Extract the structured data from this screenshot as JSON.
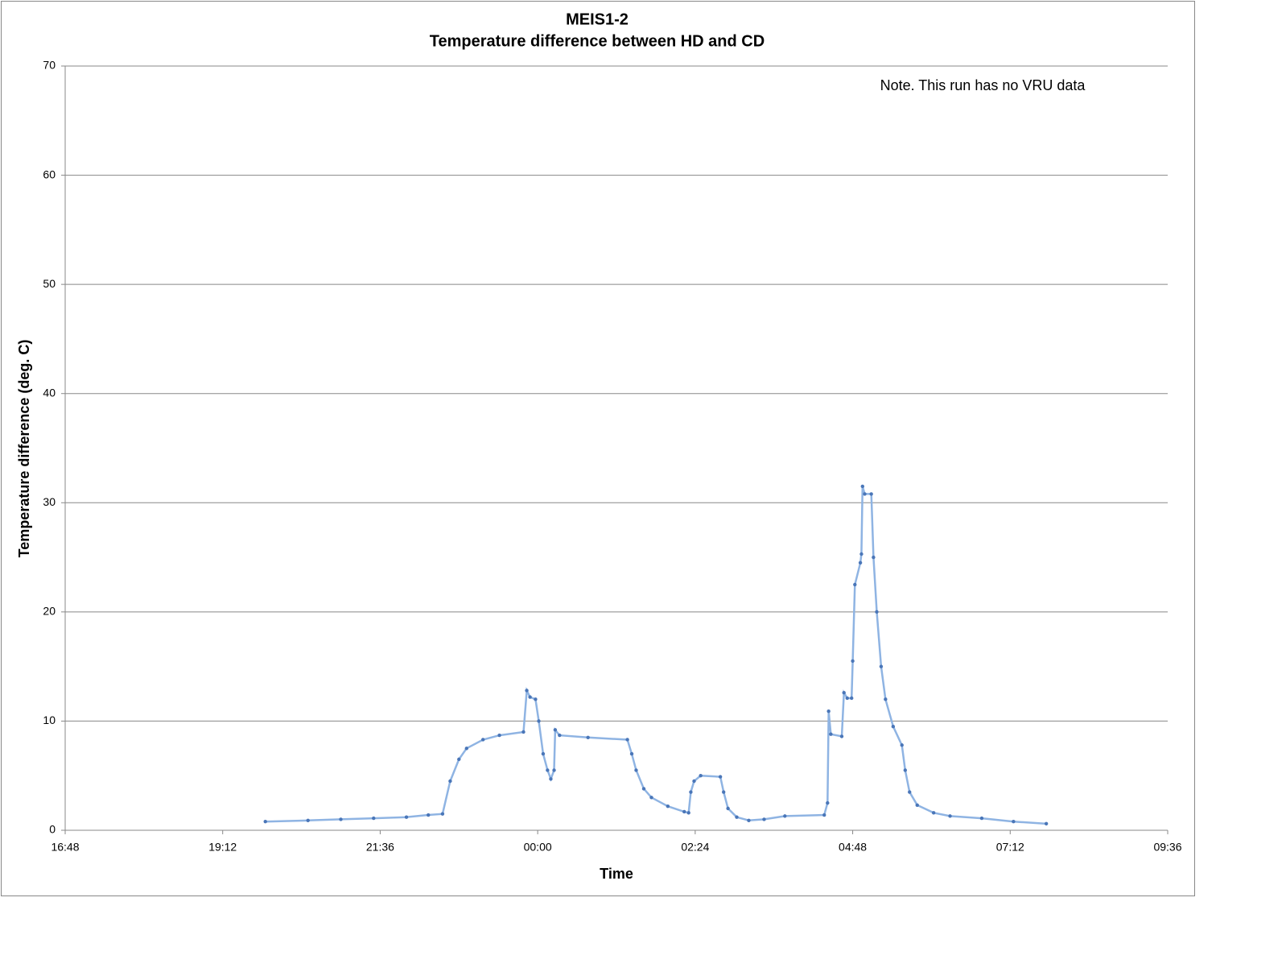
{
  "chart_data": {
    "type": "line",
    "title": "MEIS1-2",
    "subtitle": "Temperature difference between HD and CD",
    "x_label": "Time",
    "y_label": "Temperature difference (deg. C)",
    "annotation": "Note. This run has no VRU data",
    "color": "#4a76b8",
    "grid": true,
    "x": [
      "19:51",
      "20:30",
      "21:00",
      "21:30",
      "22:00",
      "22:20",
      "22:33",
      "22:40",
      "22:48",
      "22:55",
      "23:10",
      "23:25",
      "23:47",
      "23:50",
      "23:53",
      "23:58",
      "00:01",
      "00:05",
      "00:09",
      "00:12",
      "00:15",
      "00:16",
      "00:20",
      "00:46",
      "01:22",
      "01:26",
      "01:30",
      "01:37",
      "01:44",
      "01:59",
      "02:14",
      "02:18",
      "02:20",
      "02:23",
      "02:29",
      "02:47",
      "02:50",
      "02:54",
      "03:02",
      "03:13",
      "03:27",
      "03:46",
      "04:22",
      "04:25",
      "04:26",
      "04:28",
      "04:38",
      "04:40",
      "04:43",
      "04:47",
      "04:48",
      "04:50",
      "04:55",
      "04:56",
      "04:57",
      "04:59",
      "05:05",
      "05:07",
      "05:10",
      "05:14",
      "05:18",
      "05:25",
      "05:33",
      "05:36",
      "05:40",
      "05:47",
      "06:02",
      "06:17",
      "06:46",
      "07:15",
      "07:45"
    ],
    "values": [
      0.8,
      0.9,
      1.0,
      1.1,
      1.2,
      1.4,
      1.5,
      4.5,
      6.5,
      7.5,
      8.3,
      8.7,
      9.0,
      12.8,
      12.2,
      12.0,
      10,
      7,
      5.5,
      4.7,
      5.5,
      9.2,
      8.7,
      8.5,
      8.3,
      7,
      5.5,
      3.8,
      3.0,
      2.2,
      1.7,
      1.6,
      3.5,
      4.5,
      5.0,
      4.9,
      3.5,
      2.0,
      1.2,
      0.9,
      1.0,
      1.3,
      1.4,
      2.5,
      10.9,
      8.8,
      8.6,
      12.6,
      12.1,
      12.1,
      15.5,
      22.5,
      24.5,
      25.3,
      31.5,
      30.8,
      30.8,
      25,
      20,
      15,
      12,
      9.5,
      7.8,
      5.5,
      3.5,
      2.3,
      1.6,
      1.3,
      1.1,
      0.8,
      0.6
    ],
    "xlim": [
      "16:48",
      "09:36"
    ],
    "xticks": [
      "16:48",
      "19:12",
      "21:36",
      "00:00",
      "02:24",
      "04:48",
      "07:12",
      "09:36"
    ],
    "ylim": [
      0,
      70
    ],
    "yticks": [
      0,
      10,
      20,
      30,
      40,
      50,
      60,
      70
    ]
  }
}
